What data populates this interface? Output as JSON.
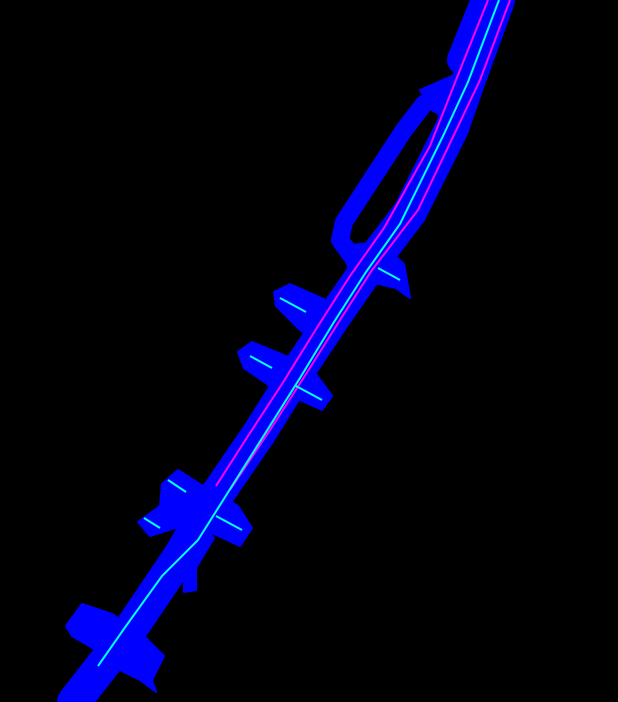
{
  "map": {
    "background_color": "#000000",
    "road_color": "#0000ff",
    "lane_marking_color": "#00ffff",
    "divider_color": "#ff00ff",
    "features": [
      "main-carriageway",
      "parallel-side-road",
      "intersection-1",
      "intersection-2",
      "intersection-3",
      "intersection-4",
      "intersection-5",
      "ramp-spur"
    ]
  }
}
